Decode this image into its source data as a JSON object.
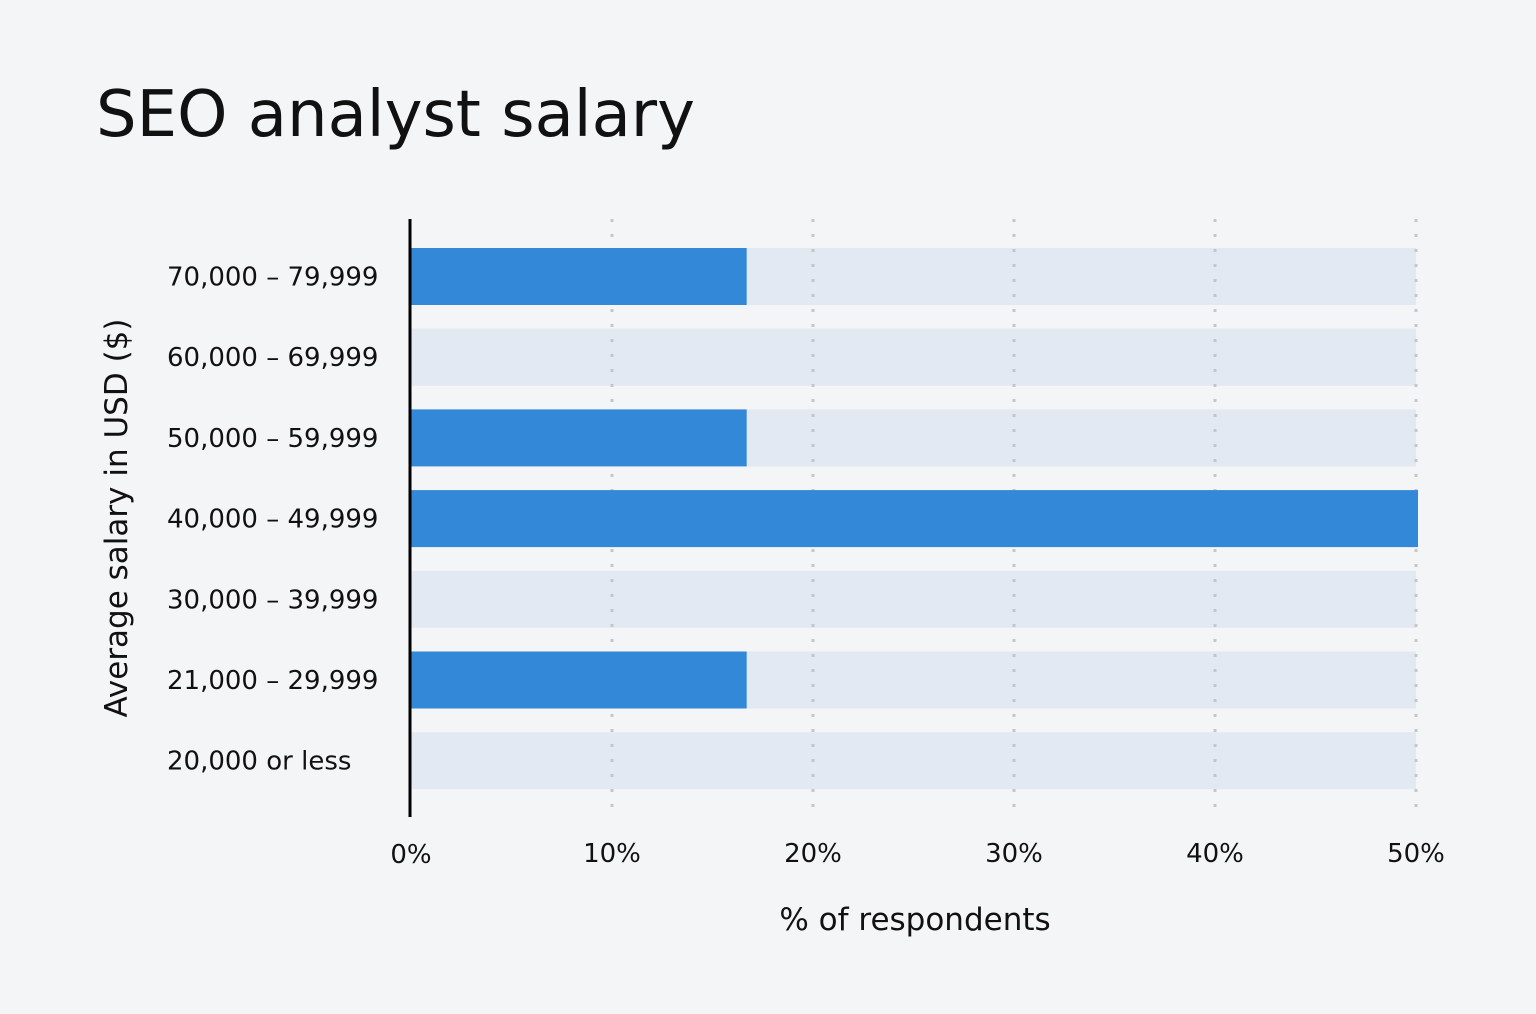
{
  "chart_data": {
    "type": "bar",
    "orientation": "horizontal",
    "title": "SEO analyst salary",
    "xlabel": "% of respondents",
    "ylabel": "Average salary in USD ($)",
    "categories": [
      "70,000 – 79,999",
      "60,000 – 69,999",
      "50,000 – 59,999",
      "40,000 – 49,999",
      "30,000 – 39,999",
      "21,000 – 29,999",
      "20,000 or less"
    ],
    "values": [
      16.7,
      0,
      16.7,
      50,
      0,
      16.7,
      0
    ],
    "xlim": [
      0,
      50
    ],
    "xticks": [
      "0%",
      "10%",
      "20%",
      "30%",
      "40%",
      "50%"
    ],
    "grid": "vertical dotted",
    "colors": {
      "bar": "#3388d8",
      "track": "#e2e9f2",
      "background": "#f4f5f7",
      "grid": "#c4c6ca"
    }
  }
}
